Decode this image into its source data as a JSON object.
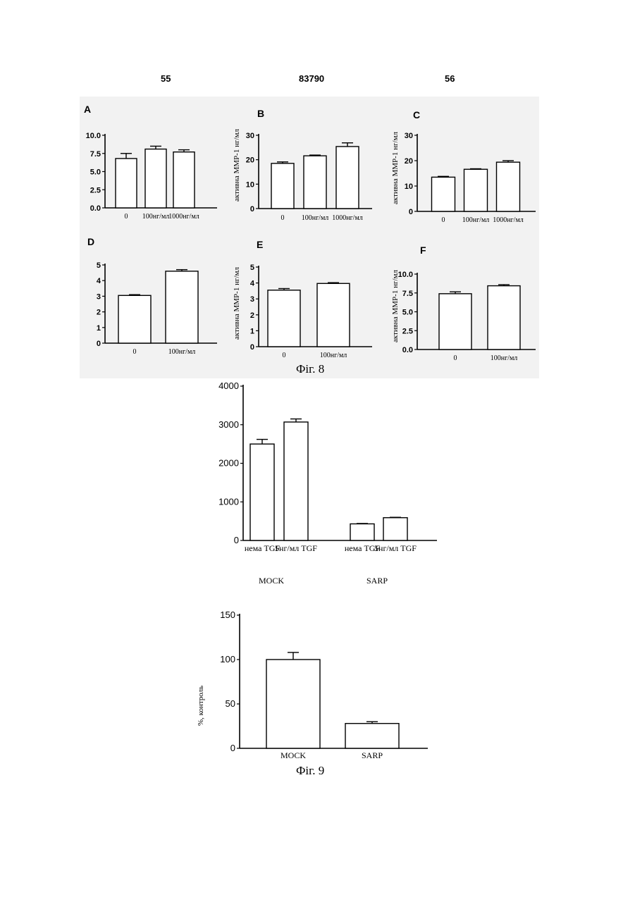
{
  "header": {
    "page_left": "55",
    "patent_number": "83790",
    "page_right": "56"
  },
  "figure8": {
    "caption": "Фіг. 8",
    "ylabel_text": "MMP-1 нг/мл",
    "ylabel_prefix": "активна"
  },
  "figure9": {
    "caption": "Фіг. 9"
  },
  "chart_data": [
    {
      "id": "fig8-A",
      "type": "bar",
      "panel_label": "A",
      "ylabel": "",
      "categories": [
        "0",
        "100нг/мл",
        "1000нг/мл"
      ],
      "values": [
        6.8,
        8.1,
        7.7
      ],
      "errors": [
        0.7,
        0.4,
        0.3
      ],
      "ylim": [
        0,
        10
      ],
      "yticks": [
        "0.0",
        "2.5",
        "5.0",
        "7.5",
        "10.0"
      ]
    },
    {
      "id": "fig8-B",
      "type": "bar",
      "panel_label": "B",
      "ylabel": "активна MMP-1 нг/мл",
      "categories": [
        "0",
        "100нг/мл",
        "1000нг/мл"
      ],
      "values": [
        18.5,
        21.6,
        25.4
      ],
      "errors": [
        0.6,
        0.3,
        1.5
      ],
      "ylim": [
        0,
        30
      ],
      "yticks": [
        "0",
        "10",
        "20",
        "30"
      ]
    },
    {
      "id": "fig8-C",
      "type": "bar",
      "panel_label": "C",
      "ylabel": "активна MMP-1 нг/мл",
      "categories": [
        "0",
        "100нг/мл",
        "1000нг/мл"
      ],
      "values": [
        13.5,
        16.6,
        19.4
      ],
      "errors": [
        0.3,
        0.2,
        0.6
      ],
      "ylim": [
        0,
        30
      ],
      "yticks": [
        "0",
        "10",
        "20",
        "30"
      ]
    },
    {
      "id": "fig8-D",
      "type": "bar",
      "panel_label": "D",
      "ylabel": "",
      "categories": [
        "0",
        "100нг/мл"
      ],
      "values": [
        3.05,
        4.6
      ],
      "errors": [
        0.05,
        0.1
      ],
      "ylim": [
        0,
        5
      ],
      "yticks": [
        "0",
        "1",
        "2",
        "3",
        "4",
        "5"
      ]
    },
    {
      "id": "fig8-E",
      "type": "bar",
      "panel_label": "E",
      "ylabel": "активна MMP-1 нг/мл",
      "categories": [
        "0",
        "100нг/мл"
      ],
      "values": [
        3.55,
        3.97
      ],
      "errors": [
        0.1,
        0.05
      ],
      "ylim": [
        0,
        5
      ],
      "yticks": [
        "0",
        "1",
        "2",
        "3",
        "4",
        "5"
      ]
    },
    {
      "id": "fig8-F",
      "type": "bar",
      "panel_label": "F",
      "ylabel": "активна MMP-1 нг/мл",
      "categories": [
        "0",
        "100нг/мл"
      ],
      "values": [
        7.4,
        8.45
      ],
      "errors": [
        0.25,
        0.15
      ],
      "ylim": [
        0,
        10
      ],
      "yticks": [
        "0.0",
        "2.5",
        "5.0",
        "7.5",
        "10.0"
      ]
    },
    {
      "id": "fig9-top",
      "type": "bar",
      "panel_label": "",
      "ylabel": "",
      "categories": [
        "нема TGF",
        "5нг/мл TGF",
        "нема TGF",
        "5нг/мл TGF"
      ],
      "groups": [
        "MOCK",
        "SARP"
      ],
      "values": [
        2500,
        3070,
        430,
        590
      ],
      "errors": [
        120,
        80,
        10,
        10
      ],
      "ylim": [
        0,
        4000
      ],
      "yticks": [
        "0",
        "1000",
        "2000",
        "3000",
        "4000"
      ]
    },
    {
      "id": "fig9-bottom",
      "type": "bar",
      "panel_label": "",
      "ylabel": "%, контроль",
      "categories": [
        "MOCK",
        "SARP"
      ],
      "values": [
        100,
        28
      ],
      "errors": [
        8,
        2
      ],
      "ylim": [
        0,
        150
      ],
      "yticks": [
        "0",
        "50",
        "100",
        "150"
      ]
    }
  ]
}
